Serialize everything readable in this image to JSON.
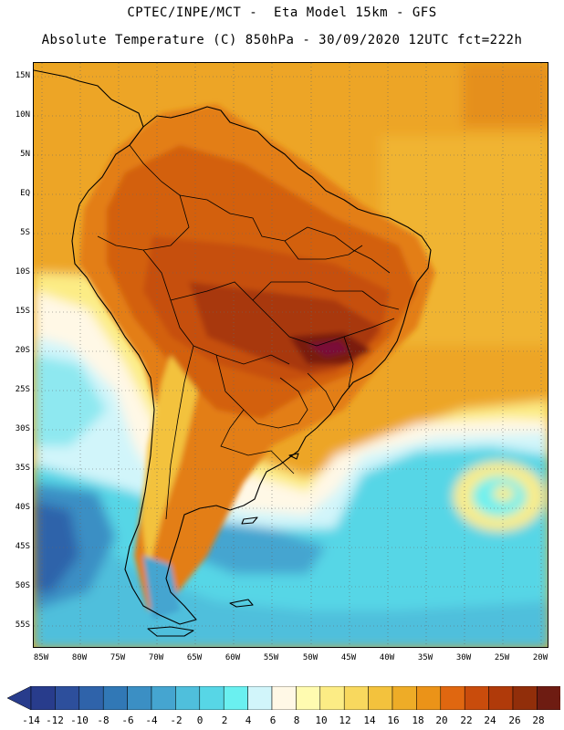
{
  "header": {
    "line1": "CPTEC/INPE/MCT -  Eta Model 15km - GFS",
    "line2": "Absolute Temperature (C) 850hPa - 30/09/2020 12UTC fct=222h"
  },
  "map": {
    "region": "South America",
    "lat_labels": [
      "15N",
      "10N",
      "5N",
      "EQ",
      "5S",
      "10S",
      "15S",
      "20S",
      "25S",
      "30S",
      "35S",
      "40S",
      "45S",
      "50S",
      "55S"
    ],
    "lon_labels": [
      "85W",
      "80W",
      "75W",
      "70W",
      "65W",
      "60W",
      "55W",
      "50W",
      "45W",
      "40W",
      "35W",
      "30W",
      "25W",
      "20W"
    ]
  },
  "legend": {
    "labels": [
      "-14",
      "-12",
      "-10",
      "-8",
      "-6",
      "-4",
      "-2",
      "0",
      "2",
      "4",
      "6",
      "8",
      "10",
      "12",
      "14",
      "16",
      "18",
      "20",
      "22",
      "24",
      "26",
      "28"
    ],
    "colors": [
      "#283c8c",
      "#2d4f9c",
      "#2f63aa",
      "#3178b6",
      "#3b8fc4",
      "#45a5d0",
      "#4fbfdc",
      "#57d6e6",
      "#6af0f0",
      "#d1f5fa",
      "#fff8e6",
      "#fffbb0",
      "#fcec85",
      "#f8d85e",
      "#f3c23d",
      "#eeac27",
      "#eb9318",
      "#e06710",
      "#c94c0c",
      "#b03a0a",
      "#912e0a",
      "#6e1c12"
    ],
    "under_color": "#283c8c",
    "over_color": "#7a1038"
  }
}
